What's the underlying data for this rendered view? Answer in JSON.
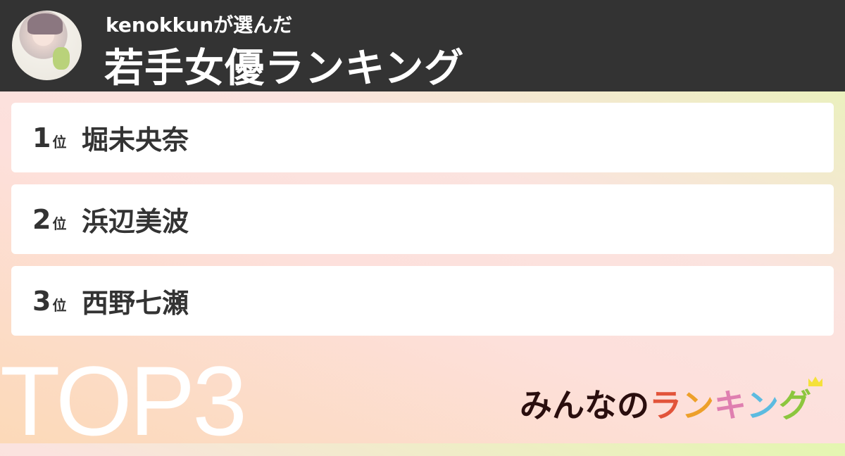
{
  "header": {
    "subtitle": "kenokkunが選んだ",
    "title": "若手女優ランキング"
  },
  "ranking": [
    {
      "rank": "1",
      "suffix": "位",
      "name": "堀未央奈"
    },
    {
      "rank": "2",
      "suffix": "位",
      "name": "浜辺美波"
    },
    {
      "rank": "3",
      "suffix": "位",
      "name": "西野七瀬"
    }
  ],
  "badge": "TOP3",
  "logo": {
    "text": "みんなのランキング",
    "parts": [
      "みんなの",
      "ラ",
      "ン",
      "キ",
      "ン",
      "グ"
    ],
    "colors": [
      "#2a0e0e",
      "#e2543a",
      "#eda02a",
      "#df7fb0",
      "#5cbbe0",
      "#8cc63e"
    ]
  }
}
